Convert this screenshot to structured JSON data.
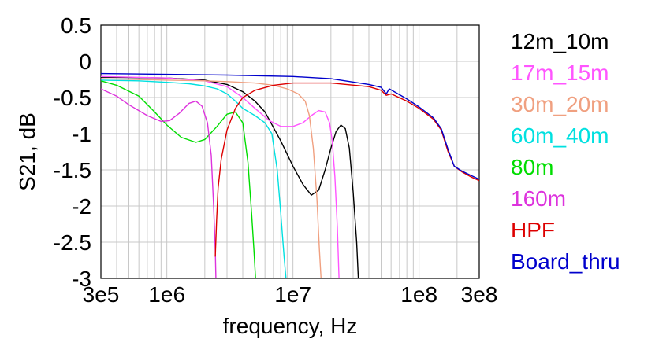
{
  "chart_data": {
    "type": "line",
    "title": "",
    "xlabel": "frequency, Hz",
    "ylabel": "S21, dB",
    "xscale": "log",
    "xlim": [
      300000,
      300000000
    ],
    "ylim": [
      -3,
      0.5
    ],
    "grid": true,
    "legend_position": "right",
    "x_ticks": [
      {
        "value": 300000,
        "label": "3e5"
      },
      {
        "value": 1000000,
        "label": "1e6"
      },
      {
        "value": 10000000,
        "label": "1e7"
      },
      {
        "value": 100000000,
        "label": "1e8"
      },
      {
        "value": 300000000,
        "label": "3e8"
      }
    ],
    "y_ticks": [
      {
        "value": 0.5,
        "label": "0.5"
      },
      {
        "value": 0,
        "label": "0"
      },
      {
        "value": -0.5,
        "label": "-0.5"
      },
      {
        "value": -1,
        "label": "-1"
      },
      {
        "value": -1.5,
        "label": "-1.5"
      },
      {
        "value": -2,
        "label": "-2"
      },
      {
        "value": -2.5,
        "label": "-2.5"
      },
      {
        "value": -3,
        "label": "-3"
      }
    ],
    "series": [
      {
        "name": "12m_10m",
        "color": "#000000",
        "points": [
          [
            300000,
            -0.22
          ],
          [
            1000000,
            -0.23
          ],
          [
            2000000,
            -0.26
          ],
          [
            3000000,
            -0.32
          ],
          [
            4000000,
            -0.42
          ],
          [
            5000000,
            -0.55
          ],
          [
            6000000,
            -0.7
          ],
          [
            8000000,
            -1.1
          ],
          [
            10000000,
            -1.45
          ],
          [
            12000000,
            -1.7
          ],
          [
            14000000,
            -1.85
          ],
          [
            16000000,
            -1.78
          ],
          [
            18000000,
            -1.5
          ],
          [
            20000000,
            -1.2
          ],
          [
            22000000,
            -0.97
          ],
          [
            24000000,
            -0.88
          ],
          [
            26000000,
            -0.93
          ],
          [
            28000000,
            -1.2
          ],
          [
            30000000,
            -1.8
          ],
          [
            32000000,
            -2.5
          ],
          [
            33000000,
            -3.0
          ]
        ]
      },
      {
        "name": "17m_15m",
        "color": "#ff55ff",
        "points": [
          [
            300000,
            -0.21
          ],
          [
            1000000,
            -0.23
          ],
          [
            2000000,
            -0.27
          ],
          [
            3000000,
            -0.35
          ],
          [
            4000000,
            -0.5
          ],
          [
            5000000,
            -0.65
          ],
          [
            6500000,
            -0.82
          ],
          [
            8000000,
            -0.9
          ],
          [
            10000000,
            -0.9
          ],
          [
            12000000,
            -0.85
          ],
          [
            14000000,
            -0.75
          ],
          [
            16000000,
            -0.68
          ],
          [
            18000000,
            -0.7
          ],
          [
            19500000,
            -0.85
          ],
          [
            20500000,
            -1.1
          ],
          [
            21500000,
            -1.6
          ],
          [
            22500000,
            -2.3
          ],
          [
            23200000,
            -3.0
          ]
        ]
      },
      {
        "name": "30m_20m",
        "color": "#f0a080",
        "points": [
          [
            300000,
            -0.24
          ],
          [
            1000000,
            -0.26
          ],
          [
            2000000,
            -0.27
          ],
          [
            3000000,
            -0.28
          ],
          [
            5000000,
            -0.3
          ],
          [
            7000000,
            -0.33
          ],
          [
            9000000,
            -0.38
          ],
          [
            11000000,
            -0.45
          ],
          [
            12500000,
            -0.55
          ],
          [
            13500000,
            -0.75
          ],
          [
            14500000,
            -1.2
          ],
          [
            15500000,
            -1.9
          ],
          [
            16200000,
            -2.6
          ],
          [
            16700000,
            -3.0
          ]
        ]
      },
      {
        "name": "60m_40m",
        "color": "#00e0e0",
        "points": [
          [
            300000,
            -0.26
          ],
          [
            600000,
            -0.27
          ],
          [
            1000000,
            -0.29
          ],
          [
            1500000,
            -0.31
          ],
          [
            2000000,
            -0.34
          ],
          [
            2500000,
            -0.38
          ],
          [
            3000000,
            -0.45
          ],
          [
            3500000,
            -0.55
          ],
          [
            4000000,
            -0.65
          ],
          [
            5000000,
            -0.75
          ],
          [
            6000000,
            -0.85
          ],
          [
            6800000,
            -1.0
          ],
          [
            7500000,
            -1.5
          ],
          [
            8000000,
            -2.1
          ],
          [
            8500000,
            -2.7
          ],
          [
            8800000,
            -3.0
          ]
        ]
      },
      {
        "name": "80m",
        "color": "#00dd00",
        "points": [
          [
            300000,
            -0.27
          ],
          [
            400000,
            -0.33
          ],
          [
            600000,
            -0.48
          ],
          [
            800000,
            -0.7
          ],
          [
            1000000,
            -0.88
          ],
          [
            1300000,
            -1.05
          ],
          [
            1700000,
            -1.12
          ],
          [
            2000000,
            -1.08
          ],
          [
            2500000,
            -0.9
          ],
          [
            3000000,
            -0.73
          ],
          [
            3500000,
            -0.7
          ],
          [
            4000000,
            -0.85
          ],
          [
            4400000,
            -1.4
          ],
          [
            4700000,
            -2.1
          ],
          [
            4900000,
            -2.6
          ],
          [
            5050000,
            -3.0
          ]
        ]
      },
      {
        "name": "160m",
        "color": "#dd33dd",
        "points": [
          [
            300000,
            -0.38
          ],
          [
            400000,
            -0.48
          ],
          [
            500000,
            -0.6
          ],
          [
            700000,
            -0.75
          ],
          [
            900000,
            -0.83
          ],
          [
            1050000,
            -0.82
          ],
          [
            1250000,
            -0.72
          ],
          [
            1500000,
            -0.58
          ],
          [
            1700000,
            -0.55
          ],
          [
            1900000,
            -0.62
          ],
          [
            2100000,
            -0.85
          ],
          [
            2250000,
            -1.3
          ],
          [
            2350000,
            -2.0
          ],
          [
            2420000,
            -2.6
          ],
          [
            2450000,
            -3.0
          ]
        ]
      },
      {
        "name": "HPF",
        "color": "#dd0000",
        "points": [
          [
            2420000,
            -2.7
          ],
          [
            2480000,
            -2.2
          ],
          [
            2550000,
            -1.75
          ],
          [
            2700000,
            -1.35
          ],
          [
            3000000,
            -0.95
          ],
          [
            3500000,
            -0.65
          ],
          [
            4000000,
            -0.5
          ],
          [
            5000000,
            -0.4
          ],
          [
            7000000,
            -0.33
          ],
          [
            10000000,
            -0.3
          ],
          [
            20000000,
            -0.3
          ],
          [
            40000000,
            -0.35
          ],
          [
            50000000,
            -0.4
          ],
          [
            55000000,
            -0.47
          ],
          [
            60000000,
            -0.45
          ],
          [
            80000000,
            -0.55
          ],
          [
            100000000,
            -0.65
          ],
          [
            130000000,
            -0.8
          ],
          [
            150000000,
            -0.95
          ],
          [
            170000000,
            -1.25
          ],
          [
            190000000,
            -1.45
          ],
          [
            220000000,
            -1.53
          ],
          [
            260000000,
            -1.6
          ],
          [
            300000000,
            -1.65
          ]
        ]
      },
      {
        "name": "Board_thru",
        "color": "#0000cc",
        "points": [
          [
            300000,
            -0.17
          ],
          [
            1000000,
            -0.18
          ],
          [
            3000000,
            -0.19
          ],
          [
            10000000,
            -0.21
          ],
          [
            20000000,
            -0.24
          ],
          [
            40000000,
            -0.32
          ],
          [
            50000000,
            -0.36
          ],
          [
            55000000,
            -0.45
          ],
          [
            58000000,
            -0.38
          ],
          [
            80000000,
            -0.52
          ],
          [
            100000000,
            -0.63
          ],
          [
            130000000,
            -0.78
          ],
          [
            150000000,
            -0.93
          ],
          [
            170000000,
            -1.22
          ],
          [
            190000000,
            -1.45
          ],
          [
            220000000,
            -1.52
          ],
          [
            260000000,
            -1.58
          ],
          [
            300000000,
            -1.63
          ]
        ]
      }
    ]
  }
}
